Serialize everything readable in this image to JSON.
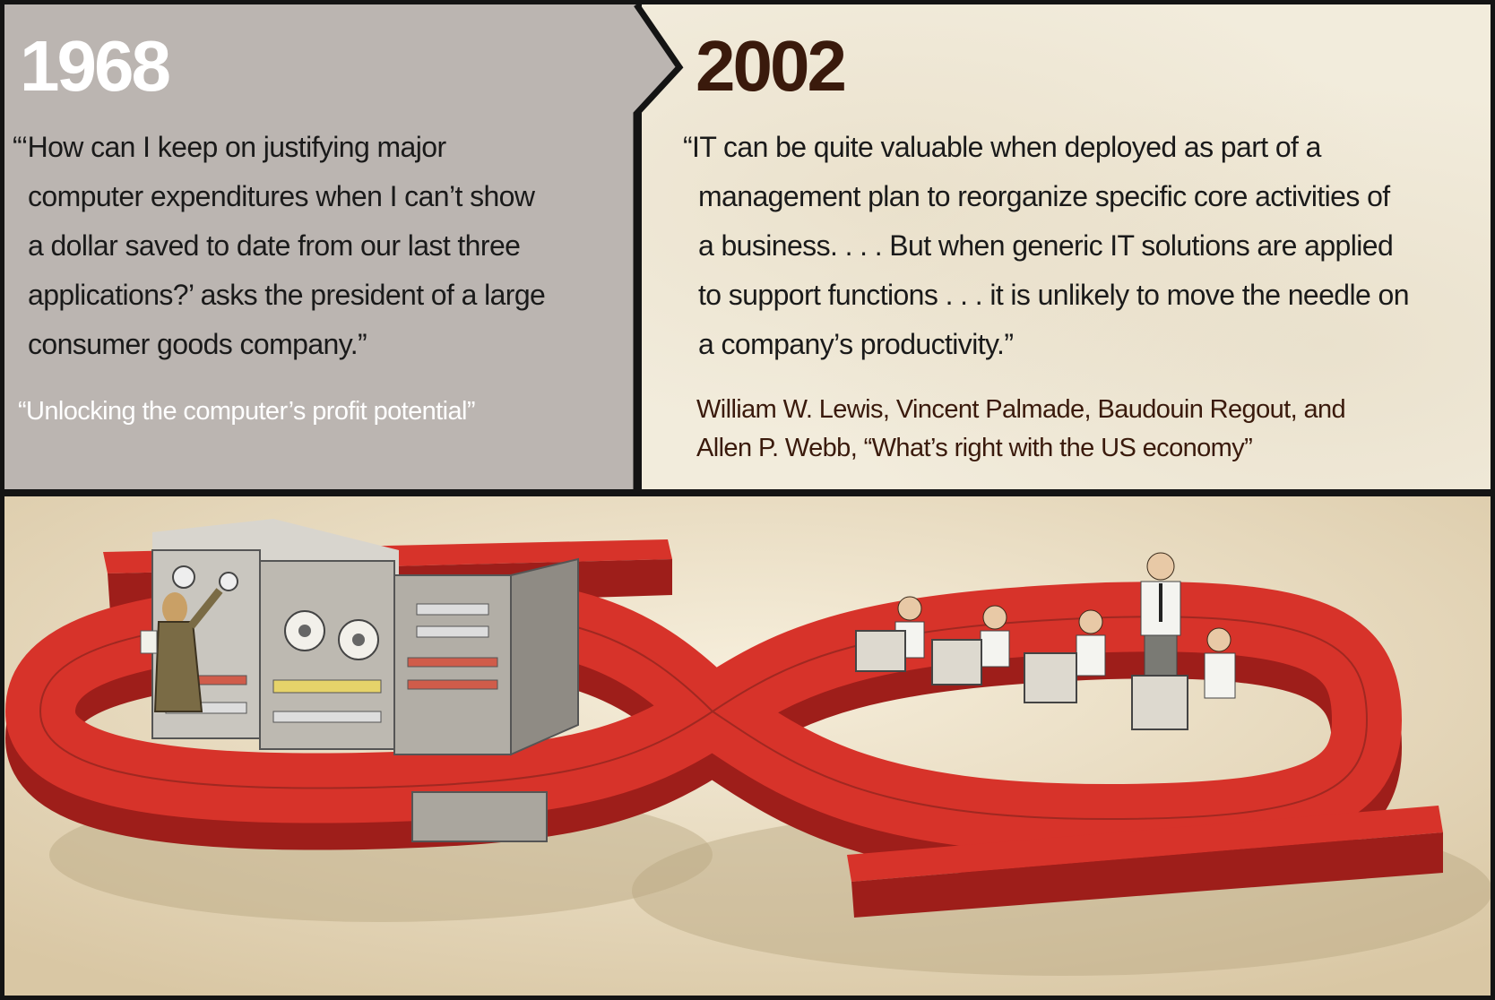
{
  "left_panel": {
    "year": "1968",
    "quote_lines": [
      "“‘How can I keep on justifying major",
      "computer expenditures when I can’t show",
      "a dollar saved to date from our last three",
      "applications?’ asks the president of a large",
      "consumer goods company.”"
    ],
    "source": "“Unlocking the computer’s profit potential”"
  },
  "right_panel": {
    "year": "2002",
    "quote_lines": [
      "“IT can be quite valuable when deployed as part of a",
      "management plan to reorganize specific core activities of",
      "a business. . . . But when generic IT solutions are applied",
      "to support functions . . . it is unlikely to move the needle on",
      "a company’s productivity.”"
    ],
    "source_lines": [
      "William W. Lewis, Vincent Palmade, Baudouin Regout, and",
      "Allen P. Webb, “What’s right with the US economy”"
    ]
  },
  "illustration": {
    "subject": "giant red infinity-shaped symbol; left loop holds a large mainframe computer operated by a woman; right loop holds office workers at desktop computers",
    "colors": {
      "symbol": "#d7332a",
      "symbol_side": "#9e1e1a",
      "background": "#efe4cc",
      "mainframe": "#c9c6bf"
    }
  }
}
